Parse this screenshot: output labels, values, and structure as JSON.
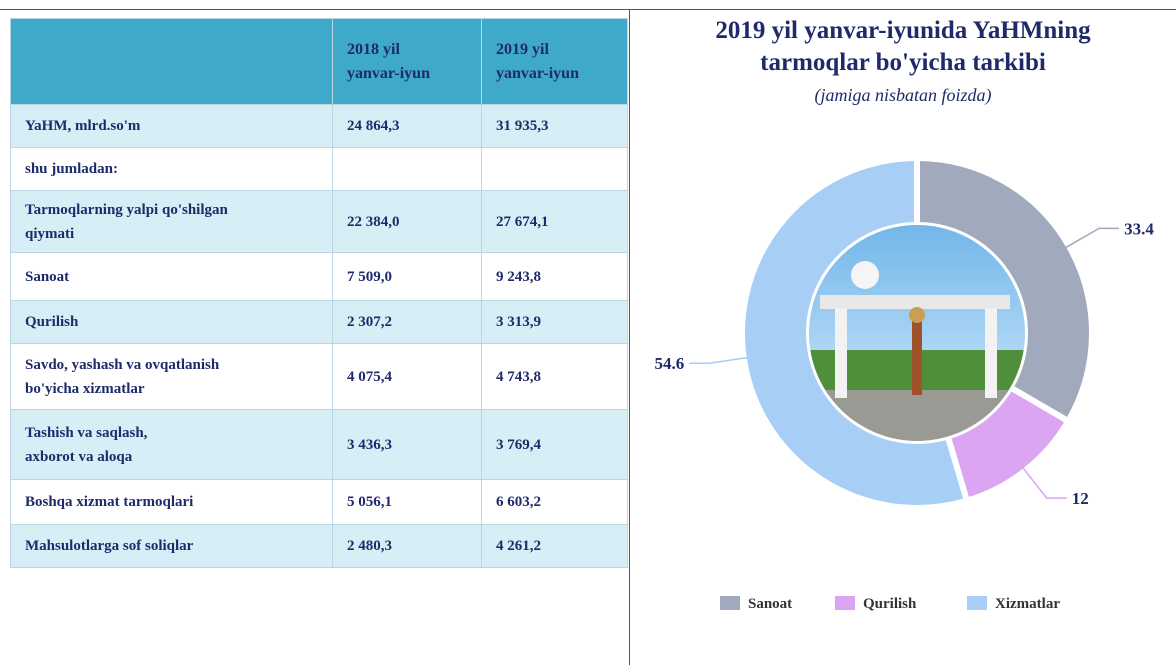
{
  "table": {
    "columns": [
      "2018 yil\nyanvar-iyun",
      "2019 yil\nyanvar-iyun"
    ],
    "rows": [
      {
        "label": "YaHM, mlrd.so'm",
        "values": [
          "24 864,3",
          "31 935,3"
        ]
      },
      {
        "label": "shu jumladan:",
        "values": []
      },
      {
        "label": "Tarmoqlarning yalpi qo'shilgan\nqiymati",
        "values": [
          "22 384,0",
          "27 674,1"
        ]
      },
      {
        "label": "Sanoat",
        "values": [
          "7 509,0",
          "9 243,8"
        ]
      },
      {
        "label": "Qurilish",
        "values": [
          "2 307,2",
          "3 313,9"
        ]
      },
      {
        "label": "Savdo, yashash va ovqatlanish\nbo'yicha xizmatlar",
        "values": [
          "4 075,4",
          "4 743,8"
        ]
      },
      {
        "label": "Tashish va saqlash,\naxborot va aloqa",
        "values": [
          "3 436,3",
          "3 769,4"
        ]
      },
      {
        "label": "Boshqa xizmat tarmoqlari",
        "values": [
          "5 056,1",
          "6 603,2"
        ]
      },
      {
        "label": "Mahsulotlarga sof soliqlar",
        "values": [
          "2 480,3",
          "4 261,2"
        ]
      }
    ]
  },
  "chart_data": {
    "type": "donut",
    "title": "2019 yil yanvar-iyunida YaHMning\ntarmoqlar bo'yicha tarkibi",
    "subtitle": "(jamiga nisbatan foizda)",
    "categories": [
      "Sanoat",
      "Qurilish",
      "Xizmatlar"
    ],
    "values": [
      33.4,
      12,
      54.6
    ],
    "colors": [
      "#a1a9bd",
      "#dba5f2",
      "#a7cff6"
    ],
    "legend": "bottom"
  }
}
